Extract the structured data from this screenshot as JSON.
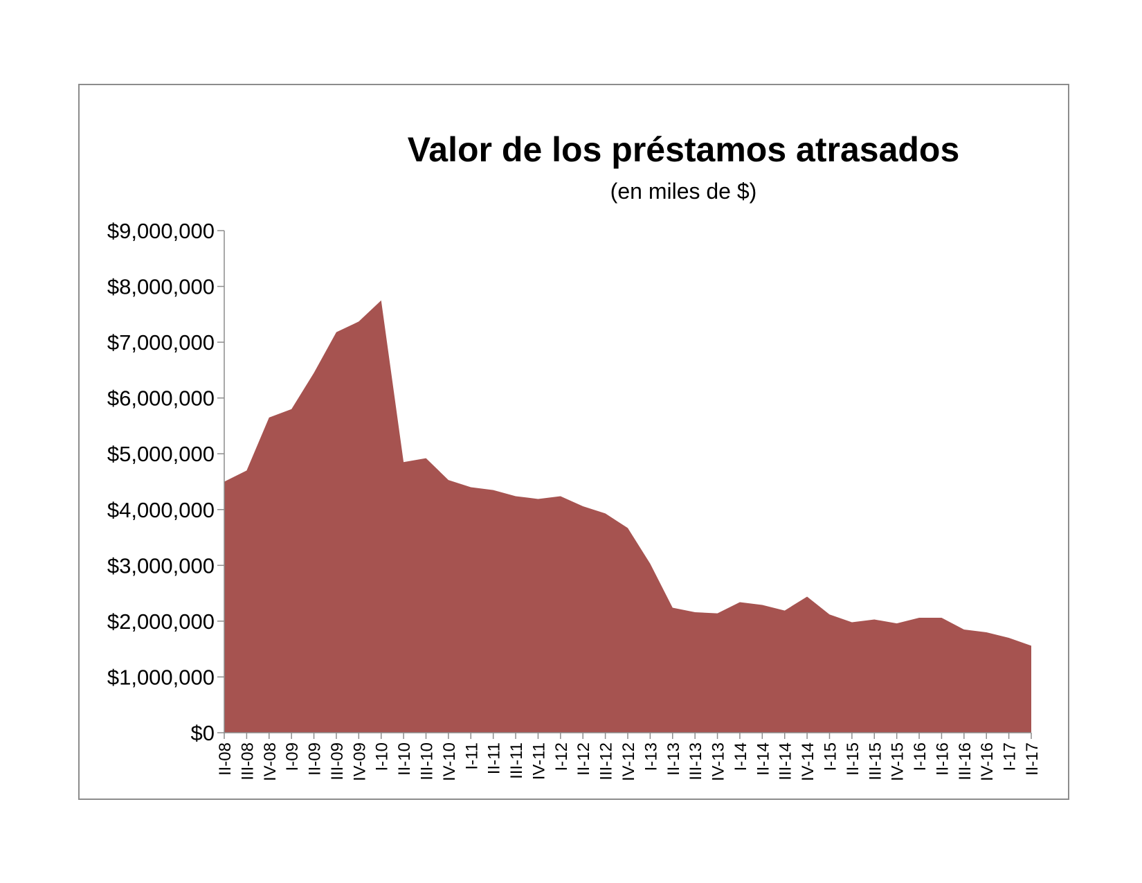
{
  "chart_data": {
    "type": "area",
    "title": "Valor de los préstamos atrasados",
    "subtitle": "(en miles de $)",
    "xlabel": "",
    "ylabel": "",
    "ylim": [
      0,
      9000000
    ],
    "yticks": [
      0,
      1000000,
      2000000,
      3000000,
      4000000,
      5000000,
      6000000,
      7000000,
      8000000,
      9000000
    ],
    "ytick_labels": [
      "$0",
      "$1,000,000",
      "$2,000,000",
      "$3,000,000",
      "$4,000,000",
      "$5,000,000",
      "$6,000,000",
      "$7,000,000",
      "$8,000,000",
      "$9,000,000"
    ],
    "categories": [
      "II-08",
      "III-08",
      "IV-08",
      "I-09",
      "II-09",
      "III-09",
      "IV-09",
      "I-10",
      "II-10",
      "III-10",
      "IV-10",
      "I-11",
      "II-11",
      "III-11",
      "IV-11",
      "I-12",
      "II-12",
      "III-12",
      "IV-12",
      "I-13",
      "II-13",
      "III-13",
      "IV-13",
      "I-14",
      "II-14",
      "III-14",
      "IV-14",
      "I-15",
      "II-15",
      "III-15",
      "IV-15",
      "I-16",
      "II-16",
      "III-16",
      "IV-16",
      "I-17",
      "II-17"
    ],
    "series": [
      {
        "values": [
          4500000,
          4700000,
          5650000,
          5800000,
          6450000,
          7180000,
          7370000,
          7750000,
          4850000,
          4920000,
          4530000,
          4400000,
          4350000,
          4240000,
          4190000,
          4240000,
          4060000,
          3930000,
          3670000,
          3030000,
          2240000,
          2160000,
          2140000,
          2340000,
          2290000,
          2190000,
          2440000,
          2120000,
          1980000,
          2030000,
          1960000,
          2060000,
          2060000,
          1850000,
          1800000,
          1700000,
          1560000
        ]
      }
    ],
    "grid": false,
    "legend": "none",
    "colors": {
      "area": "#a65350",
      "axis": "#8c8c8c",
      "frame": "#8c8c8c"
    }
  }
}
